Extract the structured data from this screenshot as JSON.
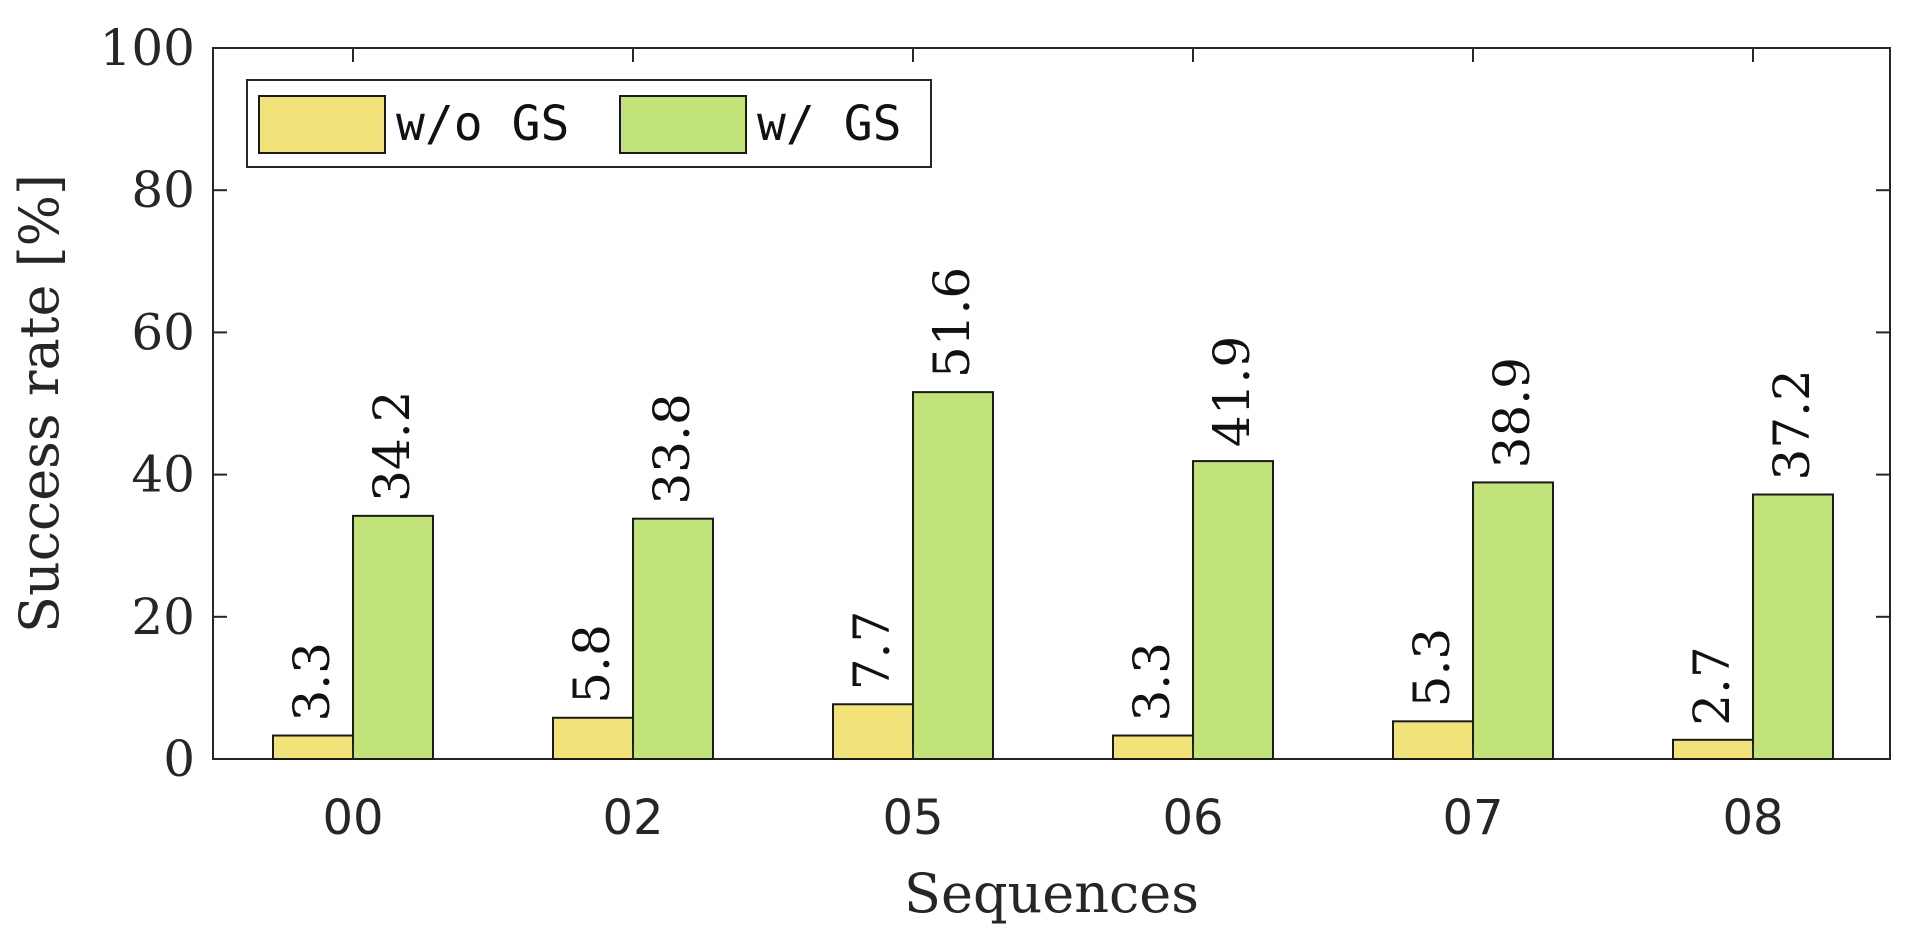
{
  "chart_data": {
    "type": "bar",
    "categories": [
      "00",
      "02",
      "05",
      "06",
      "07",
      "08"
    ],
    "series": [
      {
        "name": "w/o GS",
        "values": [
          3.3,
          5.8,
          7.7,
          3.3,
          5.3,
          2.7
        ],
        "color": "#f1e27a"
      },
      {
        "name": "w/ GS",
        "values": [
          34.2,
          33.8,
          51.6,
          41.9,
          38.9,
          37.2
        ],
        "color": "#c1e37a"
      }
    ],
    "xlabel": "Sequences",
    "ylabel": "Success rate [%]",
    "ylim": [
      0,
      100
    ],
    "yticks": [
      0,
      20,
      40,
      60,
      80,
      100
    ],
    "grid": false,
    "legend": "top-left"
  }
}
